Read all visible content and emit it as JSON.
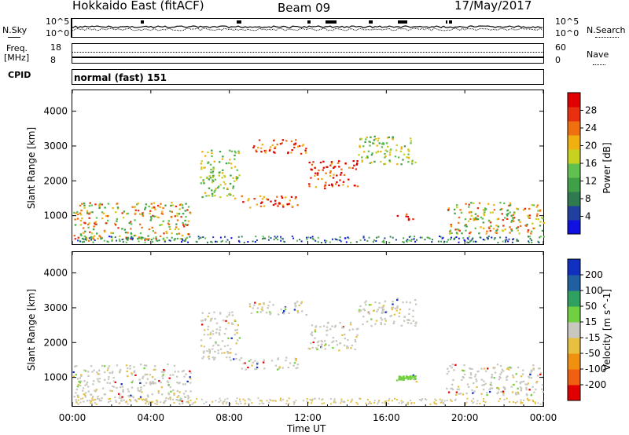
{
  "header": {
    "radar": "Hokkaido East (fitACF)",
    "beam": "Beam 09",
    "date": "17/May/2017"
  },
  "noise_panel": {
    "left_label": "N.Sky",
    "right_label": "N.Search",
    "left_top": "10^5",
    "left_bottom": "10^0",
    "right_top": "10^5",
    "right_bottom": "10^0"
  },
  "freq_panel": {
    "left_label_1": "Freq.",
    "left_label_2": "[MHz]",
    "right_label": "Nave",
    "left_top": "18",
    "left_bottom": "8",
    "right_top": "60",
    "right_bottom": "0"
  },
  "cpid_panel": {
    "label": "CPID",
    "value": "normal (fast) 151"
  },
  "time_axis": {
    "label": "Time UT",
    "ticks": [
      "00:00",
      "04:00",
      "08:00",
      "12:00",
      "16:00",
      "20:00",
      "00:00"
    ]
  },
  "chart_data": [
    {
      "type": "heatmap",
      "name": "power",
      "ylabel": "Slant Range [km]",
      "xlabel": "Time UT",
      "x_range_hours": [
        0,
        24
      ],
      "ylim": [
        180,
        4600
      ],
      "yticks": [
        "1000",
        "2000",
        "3000",
        "4000"
      ],
      "colorbar": {
        "label": "Power [dB]",
        "ticks": [
          "4",
          "8",
          "12",
          "16",
          "20",
          "24",
          "28"
        ],
        "colors": [
          "#1010e0",
          "#2040a0",
          "#307a50",
          "#40a048",
          "#60c050",
          "#c8d020",
          "#f0b010",
          "#f07010",
          "#e83010",
          "#e00000"
        ]
      },
      "scatter_regions": [
        {
          "t0": 0.0,
          "t1": 6.0,
          "r0": 300,
          "r1": 1400,
          "level": "medium-high"
        },
        {
          "t0": 6.5,
          "t1": 8.5,
          "r0": 1500,
          "r1": 2900,
          "level": "medium"
        },
        {
          "t0": 8.5,
          "t1": 11.5,
          "r0": 1250,
          "r1": 1600,
          "level": "high"
        },
        {
          "t0": 9.0,
          "t1": 12.0,
          "r0": 2800,
          "r1": 3200,
          "level": "high"
        },
        {
          "t0": 12.0,
          "t1": 14.5,
          "r0": 1800,
          "r1": 2600,
          "level": "high"
        },
        {
          "t0": 14.5,
          "t1": 17.5,
          "r0": 2500,
          "r1": 3300,
          "level": "medium"
        },
        {
          "t0": 16.5,
          "t1": 17.5,
          "r0": 900,
          "r1": 1100,
          "level": "high"
        },
        {
          "t0": 19.0,
          "t1": 24.0,
          "r0": 500,
          "r1": 1400,
          "level": "medium-high"
        }
      ]
    },
    {
      "type": "heatmap",
      "name": "velocity",
      "ylabel": "Slant Range [km]",
      "xlabel": "Time UT",
      "x_range_hours": [
        0,
        24
      ],
      "ylim": [
        180,
        4600
      ],
      "yticks": [
        "1000",
        "2000",
        "3000",
        "4000"
      ],
      "colorbar": {
        "label": "Velocity [m s^-1]",
        "ticks": [
          "200",
          "100",
          "50",
          "15",
          "-15",
          "-50",
          "-100",
          "-200"
        ],
        "colors": [
          "#1030c0",
          "#2060a0",
          "#30a060",
          "#70d040",
          "#c8c8c0",
          "#e8c040",
          "#f09010",
          "#f06010",
          "#e00000"
        ]
      }
    }
  ]
}
